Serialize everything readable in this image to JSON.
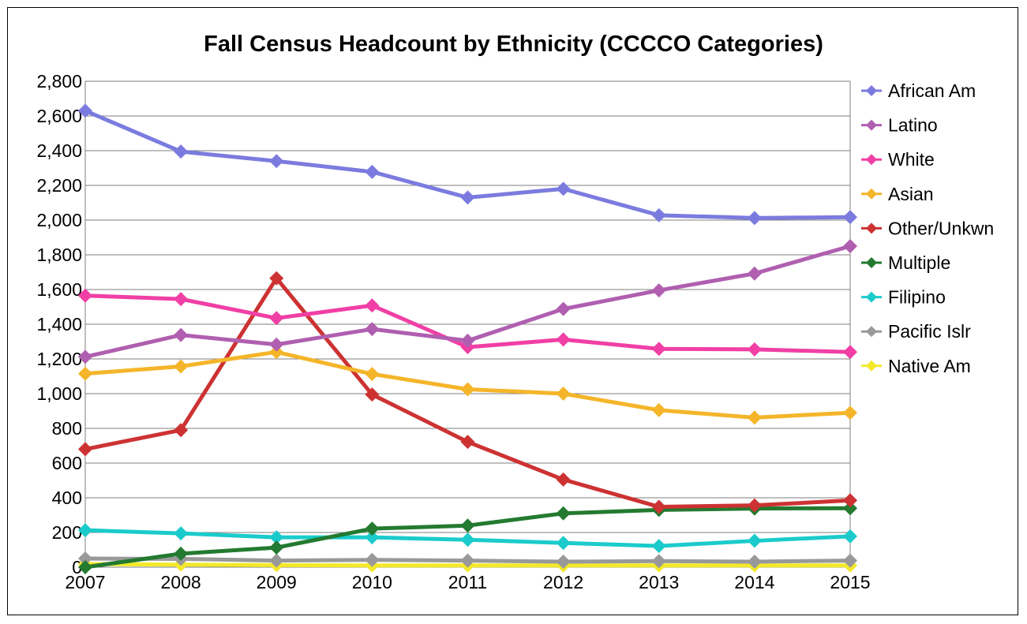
{
  "chart_data": {
    "type": "line",
    "title": "Fall Census Headcount by Ethnicity (CCCCO Categories)",
    "xlabel": "",
    "ylabel": "",
    "categories": [
      "2007",
      "2008",
      "2009",
      "2010",
      "2011",
      "2012",
      "2013",
      "2014",
      "2015"
    ],
    "ylim": [
      0,
      2800
    ],
    "y_ticks": [
      "0",
      "200",
      "400",
      "600",
      "800",
      "1,000",
      "1,200",
      "1,400",
      "1,600",
      "1,800",
      "2,000",
      "2,200",
      "2,400",
      "2,600",
      "2,800"
    ],
    "grid": true,
    "legend_position": "right",
    "series": [
      {
        "name": "African Am",
        "color": "#7b7bdf",
        "values": [
          2630,
          2395,
          2340,
          2278,
          2130,
          2180,
          2028,
          2012,
          2017
        ]
      },
      {
        "name": "Latino",
        "color": "#b05fb0",
        "values": [
          1212,
          1338,
          1283,
          1372,
          1305,
          1488,
          1595,
          1692,
          1850
        ]
      },
      {
        "name": "White",
        "color": "#f03fa5",
        "values": [
          1565,
          1545,
          1435,
          1508,
          1268,
          1312,
          1258,
          1255,
          1240
        ]
      },
      {
        "name": "Asian",
        "color": "#f5b52a",
        "values": [
          1115,
          1157,
          1240,
          1113,
          1025,
          1000,
          905,
          862,
          890
        ]
      },
      {
        "name": "Other/Unkwn",
        "color": "#cd3232",
        "values": [
          680,
          790,
          1665,
          995,
          722,
          505,
          348,
          356,
          385
        ]
      },
      {
        "name": "Multiple",
        "color": "#237a30",
        "values": [
          0,
          78,
          113,
          222,
          240,
          310,
          330,
          338,
          340
        ]
      },
      {
        "name": "Filipino",
        "color": "#1bcbcb",
        "values": [
          213,
          195,
          172,
          172,
          158,
          140,
          122,
          152,
          178
        ]
      },
      {
        "name": "Pacific Islr",
        "color": "#999999",
        "values": [
          50,
          48,
          38,
          42,
          38,
          32,
          35,
          32,
          38
        ]
      },
      {
        "name": "Native Am",
        "color": "#f3e82a",
        "values": [
          18,
          15,
          12,
          10,
          10,
          10,
          10,
          10,
          10
        ]
      }
    ]
  }
}
